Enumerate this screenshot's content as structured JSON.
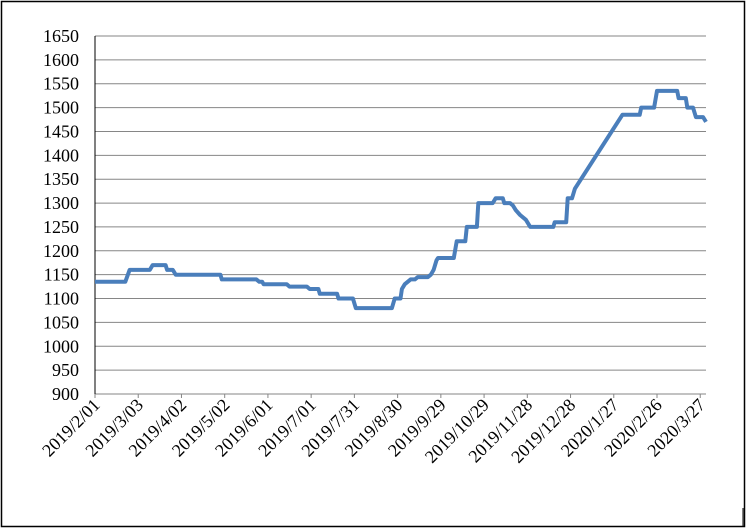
{
  "chart_data": {
    "type": "line",
    "title": "",
    "xlabel": "",
    "ylabel": "",
    "ylim": [
      900,
      1650
    ],
    "ytick_step": 50,
    "xlim": [
      "2019-02-01",
      "2020-03-31"
    ],
    "xtick_labels": [
      "2019/2/01",
      "2019/3/03",
      "2019/4/02",
      "2019/5/02",
      "2019/6/01",
      "2019/7/01",
      "2019/7/31",
      "2019/8/30",
      "2019/9/29",
      "2019/10/29",
      "2019/11/28",
      "2019/12/28",
      "2020/1/27",
      "2020/2/26",
      "2020/3/27"
    ],
    "xtick_dates": [
      "2019-02-01",
      "2019-03-03",
      "2019-04-02",
      "2019-05-02",
      "2019-06-01",
      "2019-07-01",
      "2019-07-31",
      "2019-08-30",
      "2019-09-29",
      "2019-10-29",
      "2019-11-28",
      "2019-12-28",
      "2020-01-27",
      "2020-02-26",
      "2020-03-27"
    ],
    "grid": true,
    "legend": "none",
    "line_color": "#4a7ebb",
    "series": [
      {
        "x": [
          "2019-02-01",
          "2019-02-22",
          "2019-02-25",
          "2019-03-11",
          "2019-03-13",
          "2019-03-22",
          "2019-03-23",
          "2019-03-27",
          "2019-03-29",
          "2019-04-29",
          "2019-04-30",
          "2019-05-24",
          "2019-05-26",
          "2019-05-28",
          "2019-05-29",
          "2019-06-14",
          "2019-06-16",
          "2019-06-28",
          "2019-06-30",
          "2019-07-06",
          "2019-07-07",
          "2019-07-19",
          "2019-07-20",
          "2019-07-30",
          "2019-08-01",
          "2019-08-26",
          "2019-08-28",
          "2019-09-01",
          "2019-09-02",
          "2019-09-04",
          "2019-09-08",
          "2019-09-11",
          "2019-09-13",
          "2019-09-20",
          "2019-09-22",
          "2019-09-24",
          "2019-09-26",
          "2019-09-27",
          "2019-10-08",
          "2019-10-10",
          "2019-10-16",
          "2019-10-17",
          "2019-10-24",
          "2019-10-25",
          "2019-11-04",
          "2019-11-06",
          "2019-11-11",
          "2019-11-12",
          "2019-11-16",
          "2019-11-18",
          "2019-11-20",
          "2019-11-23",
          "2019-11-27",
          "2019-11-30",
          "2019-12-16",
          "2019-12-17",
          "2019-12-25",
          "2019-12-26",
          "2019-12-29",
          "2019-12-31",
          "2020-02-02",
          "2020-02-14",
          "2020-02-15",
          "2020-02-24",
          "2020-02-26",
          "2020-03-11",
          "2020-03-12",
          "2020-03-17",
          "2020-03-18",
          "2020-03-22",
          "2020-03-24",
          "2020-03-29",
          "2020-03-31"
        ],
        "y": [
          1135,
          1135,
          1160,
          1160,
          1170,
          1170,
          1160,
          1160,
          1150,
          1150,
          1140,
          1140,
          1135,
          1135,
          1130,
          1130,
          1125,
          1125,
          1120,
          1120,
          1110,
          1110,
          1100,
          1100,
          1080,
          1080,
          1100,
          1100,
          1120,
          1130,
          1140,
          1140,
          1145,
          1145,
          1150,
          1160,
          1180,
          1185,
          1185,
          1220,
          1220,
          1250,
          1250,
          1300,
          1300,
          1310,
          1310,
          1300,
          1300,
          1295,
          1285,
          1275,
          1265,
          1250,
          1250,
          1260,
          1260,
          1310,
          1310,
          1330,
          1485,
          1485,
          1500,
          1500,
          1535,
          1535,
          1520,
          1520,
          1500,
          1500,
          1480,
          1480,
          1470
        ]
      }
    ]
  }
}
